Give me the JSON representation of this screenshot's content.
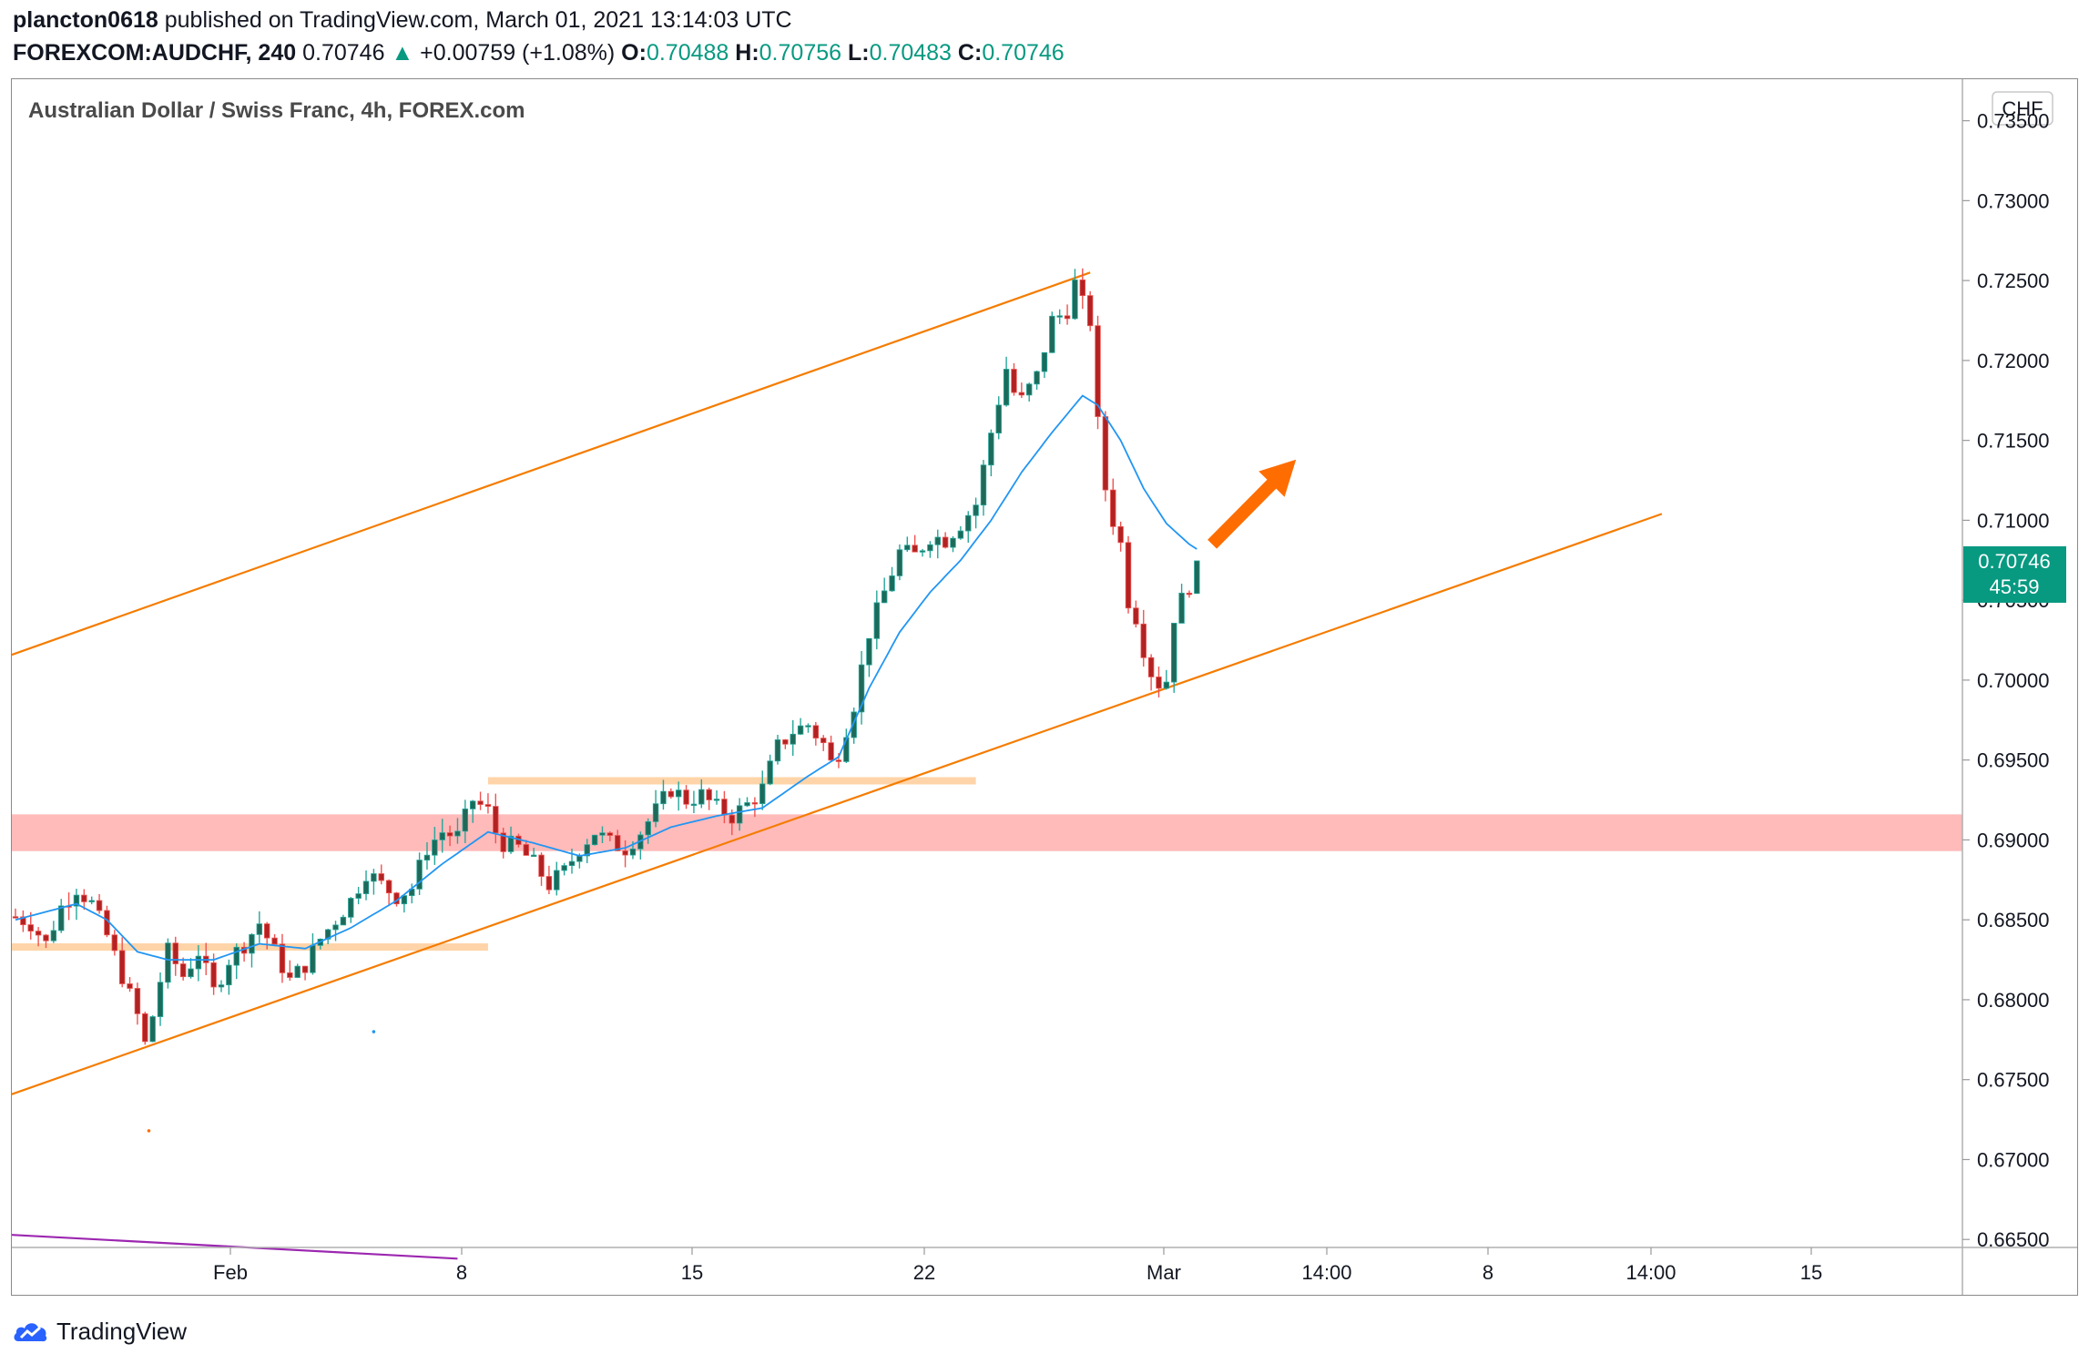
{
  "header": {
    "author": "plancton0618",
    "published_text": "published on TradingView.com, March 01, 2021 13:14:03 UTC",
    "symbol": "FOREXCOM:AUDCHF, 240",
    "last": "0.70746",
    "change": "+0.00759 (+1.08%)",
    "o_label": "O:",
    "o_value": "0.70488",
    "h_label": "H:",
    "h_value": "0.70756",
    "l_label": "L:",
    "l_value": "0.70483",
    "c_label": "C:",
    "c_value": "0.70746"
  },
  "footer": {
    "brand": "TradingView"
  },
  "colors": {
    "up": "#26a69a",
    "down": "#ef5350",
    "candle_body_up": "#1e6a5a",
    "candle_body_down": "#b22222",
    "ma": "#2196f3",
    "channel": "#f57c00",
    "zone": "#ffb3b3",
    "band": "#ffcc99",
    "arrow": "#ff6d00",
    "price_label": "#089981",
    "purple": "#9c27b0"
  },
  "chart_data": {
    "type": "candlestick",
    "title": "Australian Dollar / Swiss Franc, 4h, FOREX.com",
    "currency_button": "CHF",
    "y_ticks": [
      "0.73500",
      "0.73000",
      "0.72500",
      "0.72000",
      "0.71500",
      "0.71000",
      "0.70500",
      "0.70000",
      "0.69500",
      "0.69000",
      "0.68500",
      "0.68000",
      "0.67500",
      "0.67000",
      "0.66500"
    ],
    "ylim": [
      0.6645,
      0.7368
    ],
    "x_ticks": [
      "Feb",
      "8",
      "15",
      "22",
      "Mar",
      "14:00",
      "8",
      "14:00",
      "15"
    ],
    "last_price_label": "0.70746",
    "countdown_label": "45:59",
    "last_price": 0.70746,
    "close_path": [
      [
        0,
        0.6852
      ],
      [
        2,
        0.6848
      ],
      [
        4,
        0.6835
      ],
      [
        6,
        0.6858
      ],
      [
        8,
        0.687
      ],
      [
        10,
        0.686
      ],
      [
        12,
        0.684
      ],
      [
        14,
        0.6815
      ],
      [
        16,
        0.679
      ],
      [
        17,
        0.6772
      ],
      [
        18,
        0.679
      ],
      [
        19,
        0.6812
      ],
      [
        20,
        0.683
      ],
      [
        22,
        0.6815
      ],
      [
        24,
        0.683
      ],
      [
        26,
        0.6805
      ],
      [
        28,
        0.6825
      ],
      [
        30,
        0.6835
      ],
      [
        32,
        0.6848
      ],
      [
        34,
        0.683
      ],
      [
        36,
        0.6812
      ],
      [
        38,
        0.6822
      ],
      [
        40,
        0.6838
      ],
      [
        42,
        0.685
      ],
      [
        44,
        0.6862
      ],
      [
        46,
        0.688
      ],
      [
        48,
        0.6872
      ],
      [
        50,
        0.6865
      ],
      [
        52,
        0.687
      ],
      [
        54,
        0.6895
      ],
      [
        56,
        0.6905
      ],
      [
        58,
        0.6902
      ],
      [
        60,
        0.6925
      ],
      [
        62,
        0.6918
      ],
      [
        63,
        0.6905
      ],
      [
        64,
        0.6898
      ],
      [
        66,
        0.6895
      ],
      [
        68,
        0.6885
      ],
      [
        70,
        0.6872
      ],
      [
        72,
        0.688
      ],
      [
        74,
        0.6895
      ],
      [
        76,
        0.6905
      ],
      [
        78,
        0.6898
      ],
      [
        80,
        0.6895
      ],
      [
        82,
        0.6905
      ],
      [
        84,
        0.6918
      ],
      [
        86,
        0.6932
      ],
      [
        88,
        0.6925
      ],
      [
        90,
        0.6928
      ],
      [
        92,
        0.692
      ],
      [
        94,
        0.6915
      ],
      [
        96,
        0.6922
      ],
      [
        98,
        0.6932
      ],
      [
        100,
        0.6958
      ],
      [
        102,
        0.6968
      ],
      [
        104,
        0.6972
      ],
      [
        106,
        0.696
      ],
      [
        107,
        0.6948
      ],
      [
        108,
        0.6955
      ],
      [
        110,
        0.6985
      ],
      [
        112,
        0.703
      ],
      [
        114,
        0.7055
      ],
      [
        116,
        0.708
      ],
      [
        118,
        0.7078
      ],
      [
        120,
        0.709
      ],
      [
        122,
        0.7088
      ],
      [
        124,
        0.7098
      ],
      [
        126,
        0.711
      ],
      [
        128,
        0.7155
      ],
      [
        130,
        0.7195
      ],
      [
        131,
        0.718
      ],
      [
        132,
        0.7175
      ],
      [
        134,
        0.719
      ],
      [
        136,
        0.7225
      ],
      [
        137,
        0.7228
      ],
      [
        138,
        0.7232
      ],
      [
        139,
        0.7248
      ],
      [
        140,
        0.7235
      ],
      [
        141,
        0.7225
      ],
      [
        142,
        0.716
      ],
      [
        143,
        0.712
      ],
      [
        144,
        0.71
      ],
      [
        145,
        0.7085
      ],
      [
        146,
        0.705
      ],
      [
        147,
        0.704
      ],
      [
        148,
        0.702
      ],
      [
        149,
        0.7005
      ],
      [
        150,
        0.6998
      ],
      [
        151,
        0.7
      ],
      [
        152,
        0.704
      ],
      [
        153,
        0.705
      ],
      [
        154,
        0.706
      ],
      [
        155,
        0.7075
      ]
    ],
    "ma_path": [
      [
        0,
        0.685
      ],
      [
        8,
        0.686
      ],
      [
        12,
        0.685
      ],
      [
        16,
        0.683
      ],
      [
        20,
        0.6825
      ],
      [
        26,
        0.6825
      ],
      [
        32,
        0.6835
      ],
      [
        38,
        0.6832
      ],
      [
        44,
        0.6845
      ],
      [
        50,
        0.6862
      ],
      [
        56,
        0.6885
      ],
      [
        62,
        0.6905
      ],
      [
        68,
        0.6898
      ],
      [
        74,
        0.689
      ],
      [
        80,
        0.6895
      ],
      [
        86,
        0.6908
      ],
      [
        92,
        0.6915
      ],
      [
        98,
        0.692
      ],
      [
        104,
        0.694
      ],
      [
        108,
        0.6952
      ],
      [
        112,
        0.6995
      ],
      [
        116,
        0.703
      ],
      [
        120,
        0.7055
      ],
      [
        124,
        0.7075
      ],
      [
        128,
        0.71
      ],
      [
        132,
        0.713
      ],
      [
        136,
        0.7155
      ],
      [
        140,
        0.7178
      ],
      [
        142,
        0.7172
      ],
      [
        145,
        0.715
      ],
      [
        148,
        0.712
      ],
      [
        151,
        0.7098
      ],
      [
        154,
        0.7085
      ],
      [
        155,
        0.7082
      ]
    ],
    "channel_upper": {
      "from": [
        -1,
        0.7015
      ],
      "to": [
        141,
        0.7255
      ]
    },
    "channel_lower": {
      "from": [
        -1,
        0.674
      ],
      "to": [
        216,
        0.7104
      ]
    },
    "support_zone": {
      "y_from": 0.6893,
      "y_to": 0.6916
    },
    "bands": [
      {
        "i_from": -1,
        "i_to": 62,
        "y": 0.6833
      },
      {
        "i_from": 62,
        "i_to": 126,
        "y": 0.6937
      }
    ],
    "arrow": {
      "from": [
        157,
        0.7085
      ],
      "to": [
        168,
        0.7138
      ]
    },
    "purple_line": {
      "from": [
        -1,
        0.6653
      ],
      "to": [
        58,
        0.6638
      ]
    }
  }
}
